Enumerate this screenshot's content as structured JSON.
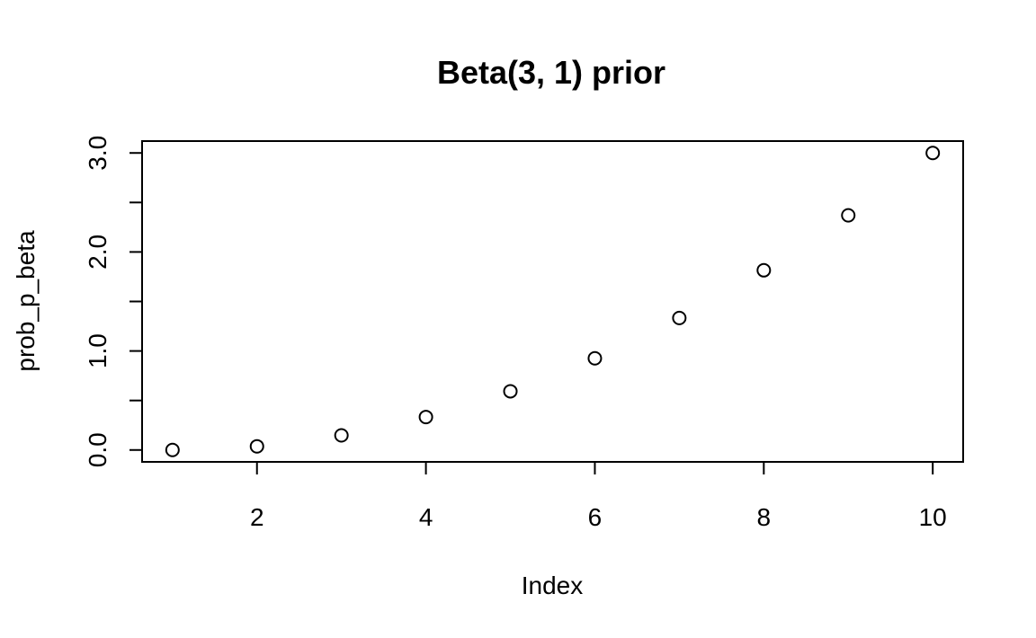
{
  "chart_data": {
    "type": "scatter",
    "title": "Beta(3, 1) prior",
    "xlabel": "Index",
    "ylabel": "prob_p_beta",
    "x": [
      1,
      2,
      3,
      4,
      5,
      6,
      7,
      8,
      9,
      10
    ],
    "y": [
      0.0,
      0.037,
      0.148,
      0.333,
      0.593,
      0.926,
      1.333,
      1.815,
      2.37,
      3.0
    ],
    "xlim": [
      0.64,
      10.36
    ],
    "ylim": [
      -0.12,
      3.12
    ],
    "xticks": [
      2,
      4,
      6,
      8,
      10
    ],
    "xtick_labels": [
      "2",
      "4",
      "6",
      "8",
      "10"
    ],
    "yticks": [
      0.0,
      0.5,
      1.0,
      1.5,
      2.0,
      2.5,
      3.0
    ],
    "ytick_labels": [
      "0.0",
      "",
      "1.0",
      "",
      "2.0",
      "",
      "3.0"
    ],
    "marker": "open-circle",
    "grid": false,
    "legend": "none",
    "colors": {
      "point": "#000000",
      "axis": "#000000",
      "background": "#ffffff"
    }
  }
}
